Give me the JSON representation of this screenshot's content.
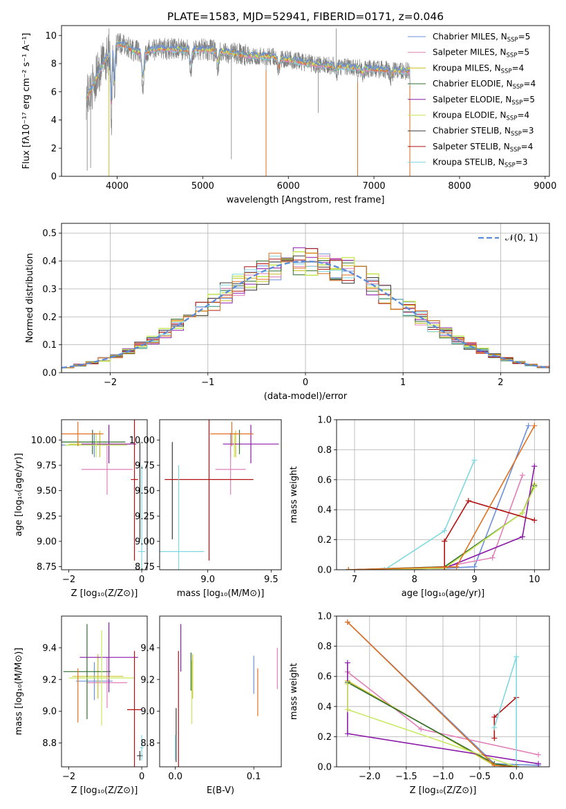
{
  "colors": {
    "chabrier_miles": "#6a8fd8",
    "salpeter_miles": "#e07fb8",
    "kroupa_miles": "#c8c020",
    "chabrier_elodie": "#2d6e2d",
    "salpeter_elodie": "#8b1aa8",
    "kroupa_elodie": "#c8e860",
    "chabrier_stelib": "#3a3a3a",
    "salpeter_stelib": "#b01010",
    "kroupa_stelib": "#7fd7e0",
    "orange": "#e07020",
    "gray": "#808080",
    "normal_curve": "#5a8ad8"
  },
  "legend_entries": [
    {
      "label": "Chabrier MILES, N",
      "sub": "SSP",
      "tail": "=5",
      "color_key": "chabrier_miles"
    },
    {
      "label": "Salpeter MILES, N",
      "sub": "SSP",
      "tail": "=5",
      "color_key": "salpeter_miles"
    },
    {
      "label": "Kroupa MILES, N",
      "sub": "SSP",
      "tail": "=4",
      "color_key": "kroupa_miles"
    },
    {
      "label": "Chabrier ELODIE, N",
      "sub": "SSP",
      "tail": "=4",
      "color_key": "chabrier_elodie"
    },
    {
      "label": "Salpeter ELODIE, N",
      "sub": "SSP",
      "tail": "=5",
      "color_key": "salpeter_elodie"
    },
    {
      "label": "Kroupa ELODIE, N",
      "sub": "SSP",
      "tail": "=4",
      "color_key": "kroupa_elodie"
    },
    {
      "label": "Chabrier STELIB, N",
      "sub": "SSP",
      "tail": "=3",
      "color_key": "chabrier_stelib"
    },
    {
      "label": "Salpeter STELIB, N",
      "sub": "SSP",
      "tail": "=4",
      "color_key": "salpeter_stelib"
    },
    {
      "label": "Kroupa STELIB, N",
      "sub": "SSP",
      "tail": "=3",
      "color_key": "kroupa_stelib"
    }
  ],
  "chart_data": [
    {
      "id": "spectrum",
      "type": "line",
      "title": "PLATE=1583, MJD=52941, FIBERID=0171, z=0.046",
      "xlabel": "wavelength [Angstrom, rest frame]",
      "ylabel": "Flux [fλ10⁻¹⁷ erg cm⁻² s⁻¹ A⁻¹]",
      "xlim": [
        3350,
        9050
      ],
      "ylim": [
        0,
        10.7
      ],
      "xticks": [
        4000,
        5000,
        6000,
        7000,
        8000,
        9000
      ],
      "yticks": [
        0,
        2,
        4,
        6,
        8,
        10
      ],
      "data_range": [
        3640,
        7420
      ],
      "continuum": [
        [
          3640,
          5.6
        ],
        [
          3700,
          6.2
        ],
        [
          3800,
          7.6
        ],
        [
          3900,
          8.7
        ],
        [
          4000,
          9.4
        ],
        [
          4100,
          9.3
        ],
        [
          4200,
          8.9
        ],
        [
          4300,
          8.8
        ],
        [
          4500,
          9.1
        ],
        [
          4700,
          9.0
        ],
        [
          5000,
          9.0
        ],
        [
          5200,
          8.9
        ],
        [
          5500,
          8.6
        ],
        [
          5800,
          8.5
        ],
        [
          6000,
          8.3
        ],
        [
          6300,
          7.95
        ],
        [
          6600,
          7.8
        ],
        [
          6900,
          7.65
        ],
        [
          7200,
          7.55
        ],
        [
          7420,
          7.45
        ]
      ],
      "absorption": [
        [
          3933,
          0.2
        ],
        [
          3968,
          3.0
        ],
        [
          4300,
          4.6
        ],
        [
          4860,
          6.6
        ],
        [
          5175,
          7.2
        ],
        [
          5890,
          7.0
        ],
        [
          6563,
          7.1
        ],
        [
          6870,
          6.9
        ],
        [
          7200,
          6.7
        ]
      ],
      "spikes": [
        [
          3650,
          0.4
        ],
        [
          3690,
          0.6
        ],
        [
          3905,
          10.5
        ],
        [
          5335,
          1.2
        ],
        [
          5740,
          0.0
        ],
        [
          6350,
          4.5
        ],
        [
          6560,
          10.5
        ],
        [
          6810,
          0.0
        ],
        [
          7420,
          0.0
        ]
      ],
      "legend_position": "upper right"
    },
    {
      "id": "residual_hist",
      "type": "line",
      "xlabel": "(data-model)/error",
      "ylabel": "Normed distribution",
      "xlim": [
        -2.5,
        2.5
      ],
      "ylim": [
        0,
        0.535
      ],
      "xticks": [
        -2,
        -1,
        0,
        1,
        2
      ],
      "yticks": [
        0.0,
        0.1,
        0.2,
        0.3,
        0.4,
        0.5
      ],
      "legend": "𝒩(0, 1)",
      "grid": true,
      "bins": 40
    },
    {
      "id": "age_vs_Z",
      "type": "scatter",
      "xlabel": "Z [log₁₀(Z/Z⊙)]",
      "ylabel": "age  [log₁₀(age/yr)]",
      "xlim": [
        -2.2,
        0.15
      ],
      "ylim": [
        8.72,
        10.2
      ],
      "xticks": [
        -2,
        0
      ],
      "yticks": [
        8.75,
        9.0,
        9.25,
        9.5,
        9.75,
        10.0
      ],
      "points": [
        {
          "c": "chabrier_miles",
          "x": -1.3,
          "xe": 0.9,
          "y": 9.95,
          "ye": 0.12
        },
        {
          "c": "salpeter_miles",
          "x": -0.95,
          "xe": 0.7,
          "y": 9.71,
          "ye": 0.25
        },
        {
          "c": "kroupa_miles",
          "x": -1.15,
          "xe": 0.85,
          "y": 9.96,
          "ye": 0.13
        },
        {
          "c": "chabrier_elodie",
          "x": -1.35,
          "xe": 0.9,
          "y": 9.98,
          "ye": 0.12
        },
        {
          "c": "salpeter_elodie",
          "x": -0.9,
          "xe": 0.75,
          "y": 9.96,
          "ye": 0.19
        },
        {
          "c": "kroupa_elodie",
          "x": -1.25,
          "xe": 0.85,
          "y": 9.95,
          "ye": 0.12
        },
        {
          "c": "chabrier_stelib",
          "x": -0.05,
          "xe": 0.0,
          "y": 9.5,
          "ye": 0.48
        },
        {
          "c": "salpeter_stelib",
          "x": -0.2,
          "xe": 0.1,
          "y": 9.61,
          "ye": 0.8
        },
        {
          "c": "kroupa_stelib",
          "x": 0.0,
          "xe": 0.1,
          "y": 8.9,
          "ye": 0.85
        },
        {
          "c": "orange",
          "x": -1.75,
          "xe": 0.7,
          "y": 10.06,
          "ye": 0.12
        }
      ]
    },
    {
      "id": "age_vs_mass",
      "type": "scatter",
      "xlabel": "mass [log₁₀(M/M⊙)]",
      "ylabel": "",
      "xlim": [
        8.62,
        9.58
      ],
      "ylim": [
        8.72,
        10.2
      ],
      "xticks": [
        9.0,
        9.5
      ],
      "yticks": [
        8.75,
        9.0,
        9.25,
        9.5,
        9.75,
        10.0
      ],
      "points": [
        {
          "c": "chabrier_miles",
          "x": 9.18,
          "xe": 0.0,
          "y": 9.95,
          "ye": 0.12
        },
        {
          "c": "salpeter_miles",
          "x": 9.18,
          "xe": 0.12,
          "y": 9.71,
          "ye": 0.25
        },
        {
          "c": "kroupa_miles",
          "x": 9.22,
          "xe": 0.0,
          "y": 9.96,
          "ye": 0.13
        },
        {
          "c": "chabrier_elodie",
          "x": 9.25,
          "xe": 0.0,
          "y": 9.98,
          "ye": 0.12
        },
        {
          "c": "salpeter_elodie",
          "x": 9.34,
          "xe": 0.22,
          "y": 9.96,
          "ye": 0.19
        },
        {
          "c": "kroupa_elodie",
          "x": 9.21,
          "xe": 0.0,
          "y": 9.95,
          "ye": 0.12
        },
        {
          "c": "chabrier_stelib",
          "x": 8.72,
          "xe": 0.0,
          "y": 9.5,
          "ye": 0.48
        },
        {
          "c": "salpeter_stelib",
          "x": 9.01,
          "xe": 0.35,
          "y": 9.61,
          "ye": 0.8
        },
        {
          "c": "kroupa_stelib",
          "x": 8.77,
          "xe": 0.2,
          "y": 8.9,
          "ye": 0.85
        },
        {
          "c": "orange",
          "x": 9.19,
          "xe": 0.17,
          "y": 10.06,
          "ye": 0.12
        }
      ]
    },
    {
      "id": "weight_vs_age",
      "type": "line",
      "xlabel": "age  [log₁₀(age/yr)]",
      "ylabel": "mass weight",
      "xlim": [
        6.7,
        10.25
      ],
      "ylim": [
        0,
        1.0
      ],
      "xticks": [
        7,
        8,
        9,
        10
      ],
      "yticks": [
        0.0,
        0.2,
        0.4,
        0.6,
        0.8,
        1.0
      ],
      "grid": true,
      "series": [
        {
          "c": "chabrier_miles",
          "x": [
            6.9,
            8.5,
            9.0,
            9.9
          ],
          "y": [
            0.0,
            0.01,
            0.02,
            0.96
          ]
        },
        {
          "c": "salpeter_miles",
          "x": [
            6.9,
            8.5,
            9.3,
            9.8
          ],
          "y": [
            0.0,
            0.02,
            0.08,
            0.63
          ]
        },
        {
          "c": "kroupa_miles",
          "x": [
            6.9,
            8.5,
            9.8,
            10.0
          ],
          "y": [
            0.0,
            0.01,
            0.38,
            0.57
          ]
        },
        {
          "c": "chabrier_elodie",
          "x": [
            6.9,
            8.5,
            9.8,
            10.0
          ],
          "y": [
            0.0,
            0.02,
            0.38,
            0.56
          ]
        },
        {
          "c": "salpeter_elodie",
          "x": [
            6.9,
            8.5,
            9.8,
            10.0
          ],
          "y": [
            0.0,
            0.01,
            0.22,
            0.69
          ]
        },
        {
          "c": "kroupa_elodie",
          "x": [
            6.9,
            8.5,
            9.8,
            10.0
          ],
          "y": [
            0.0,
            0.01,
            0.38,
            0.55
          ]
        },
        {
          "c": "salpeter_stelib",
          "x": [
            8.5,
            8.5,
            8.9,
            10.0
          ],
          "y": [
            0.02,
            0.19,
            0.46,
            0.33
          ]
        },
        {
          "c": "kroupa_stelib",
          "x": [
            7.5,
            8.5,
            9.0
          ],
          "y": [
            0.0,
            0.26,
            0.73
          ]
        },
        {
          "c": "orange",
          "x": [
            6.9,
            8.7,
            10.0
          ],
          "y": [
            0.0,
            0.02,
            0.96
          ]
        }
      ]
    },
    {
      "id": "mass_vs_Z",
      "type": "scatter",
      "xlabel": "Z [log₁₀(Z/Z⊙)]",
      "ylabel": "mass [log₁₀(M/M⊙)]",
      "xlim": [
        -2.2,
        0.15
      ],
      "ylim": [
        8.65,
        9.6
      ],
      "xticks": [
        -2,
        0
      ],
      "yticks": [
        8.8,
        9.0,
        9.2,
        9.4
      ],
      "points": [
        {
          "c": "chabrier_miles",
          "x": -1.3,
          "xe": 0.5,
          "y": 9.19,
          "ye": 0.12
        },
        {
          "c": "salpeter_miles",
          "x": -0.95,
          "xe": 0.55,
          "y": 9.18,
          "ye": 0.16
        },
        {
          "c": "kroupa_miles",
          "x": -1.2,
          "xe": 0.7,
          "y": 9.22,
          "ye": 0.14
        },
        {
          "c": "chabrier_elodie",
          "x": -1.5,
          "xe": 0.65,
          "y": 9.25,
          "ye": 0.3
        },
        {
          "c": "salpeter_elodie",
          "x": -0.9,
          "xe": 0.8,
          "y": 9.34,
          "ye": 0.22
        },
        {
          "c": "kroupa_elodie",
          "x": -1.1,
          "xe": 0.9,
          "y": 9.21,
          "ye": 0.3
        },
        {
          "c": "chabrier_stelib",
          "x": -0.05,
          "xe": 0.08,
          "y": 8.72,
          "ye": 0.03
        },
        {
          "c": "salpeter_stelib",
          "x": -0.2,
          "xe": 0.2,
          "y": 9.01,
          "ye": 0.37
        },
        {
          "c": "kroupa_stelib",
          "x": 0.0,
          "xe": 0.05,
          "y": 8.77,
          "ye": 0.08
        },
        {
          "c": "orange",
          "x": -1.75,
          "xe": 0.0,
          "y": 9.1,
          "ye": 0.17
        }
      ]
    },
    {
      "id": "mass_vs_ebv",
      "type": "scatter",
      "xlabel": "E(B-V)",
      "ylabel": "",
      "xlim": [
        -0.02,
        0.135
      ],
      "ylim": [
        8.65,
        9.6
      ],
      "xticks": [
        0.0,
        0.1
      ],
      "yticks": [
        8.8,
        9.0,
        9.2,
        9.4
      ],
      "points": [
        {
          "c": "chabrier_miles",
          "x": 0.1,
          "xe": 0,
          "y": 9.23,
          "ye": 0.12
        },
        {
          "c": "salpeter_miles",
          "x": 0.13,
          "xe": 0,
          "y": 9.27,
          "ye": 0.13
        },
        {
          "c": "kroupa_miles",
          "x": 0.022,
          "xe": 0,
          "y": 9.22,
          "ye": 0.14
        },
        {
          "c": "chabrier_elodie",
          "x": 0.02,
          "xe": 0,
          "y": 9.25,
          "ye": 0.12
        },
        {
          "c": "salpeter_elodie",
          "x": 0.007,
          "xe": 0,
          "y": 9.4,
          "ye": 0.15
        },
        {
          "c": "kroupa_elodie",
          "x": 0.021,
          "xe": 0,
          "y": 9.12,
          "ye": 0.2
        },
        {
          "c": "chabrier_stelib",
          "x": 0.001,
          "xe": 0,
          "y": 8.85,
          "ye": 0.17
        },
        {
          "c": "salpeter_stelib",
          "x": 0.004,
          "xe": 0,
          "y": 9.01,
          "ye": 0.37
        },
        {
          "c": "kroupa_stelib",
          "x": 0.0,
          "xe": 0,
          "y": 8.77,
          "ye": 0.08
        },
        {
          "c": "orange",
          "x": 0.105,
          "xe": 0,
          "y": 9.12,
          "ye": 0.15
        }
      ]
    },
    {
      "id": "weight_vs_Z",
      "type": "line",
      "xlabel": "Z [log₁₀(Z/Z⊙)]",
      "ylabel": "mass weight",
      "xlim": [
        -2.45,
        0.45
      ],
      "ylim": [
        0,
        1.0
      ],
      "xticks": [
        -2.0,
        -1.5,
        -1.0,
        -0.5,
        0.0
      ],
      "xticklabels": [
        "−2.0",
        "−1.5",
        "−1.0",
        "−0.5",
        "0.0"
      ],
      "yticks": [
        0.0,
        0.2,
        0.4,
        0.6,
        0.8,
        1.0
      ],
      "grid": true,
      "series": [
        {
          "c": "chabrier_miles",
          "x": [
            -2.3,
            -0.3,
            0.3
          ],
          "y": [
            0.96,
            0.02,
            0.01
          ]
        },
        {
          "c": "salpeter_miles",
          "x": [
            -2.3,
            -1.3,
            0.3
          ],
          "y": [
            0.63,
            0.25,
            0.08
          ]
        },
        {
          "c": "kroupa_miles",
          "x": [
            -2.3,
            -0.3,
            0.0
          ],
          "y": [
            0.57,
            0.01,
            0.0
          ]
        },
        {
          "c": "chabrier_elodie",
          "x": [
            -2.3,
            -0.3,
            0.0
          ],
          "y": [
            0.56,
            0.02,
            0.0
          ]
        },
        {
          "c": "salpeter_elodie",
          "x": [
            -2.3,
            -2.3,
            0.3
          ],
          "y": [
            0.69,
            0.22,
            0.02
          ]
        },
        {
          "c": "kroupa_elodie",
          "x": [
            -2.3,
            -2.3,
            0.0
          ],
          "y": [
            0.55,
            0.38,
            0.0
          ]
        },
        {
          "c": "salpeter_stelib",
          "x": [
            -0.3,
            -0.3,
            0.0
          ],
          "y": [
            0.19,
            0.33,
            0.46
          ]
        },
        {
          "c": "kroupa_stelib",
          "x": [
            -0.3,
            0.0,
            0.0
          ],
          "y": [
            0.26,
            0.73,
            0.01
          ]
        },
        {
          "c": "orange",
          "x": [
            -2.3,
            -0.3,
            0.0
          ],
          "y": [
            0.96,
            0.01,
            0.0
          ]
        }
      ]
    }
  ]
}
